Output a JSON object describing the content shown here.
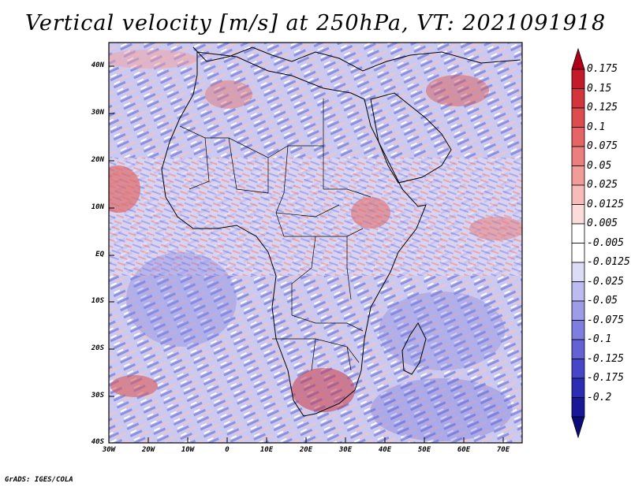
{
  "title": "Vertical velocity [m/s] at 250hPa, VT: 2021091918",
  "credit": "GrADS: IGES/COLA",
  "map": {
    "lat_labels": [
      "40N",
      "30N",
      "20N",
      "10N",
      "EQ",
      "10S",
      "20S",
      "30S",
      "40S"
    ],
    "lon_labels": [
      "30W",
      "20W",
      "10W",
      "0",
      "10E",
      "20E",
      "30E",
      "40E",
      "50E",
      "60E",
      "70E"
    ],
    "lat_range": [
      -40,
      45
    ],
    "lon_range": [
      -30,
      75
    ]
  },
  "colorbar": {
    "labels": [
      "0.175",
      "0.15",
      "0.125",
      "0.1",
      "0.075",
      "0.05",
      "0.025",
      "0.0125",
      "0.005",
      "-0.005",
      "-0.0125",
      "-0.025",
      "-0.05",
      "-0.075",
      "-0.1",
      "-0.125",
      "-0.175",
      "-0.2"
    ],
    "colors": [
      "#b00018",
      "#c41a2a",
      "#d4343c",
      "#de4c50",
      "#e66466",
      "#ec7e7e",
      "#f29c9a",
      "#f7bcba",
      "#fbdcdb",
      "#ffffff",
      "#dcdcf7",
      "#bcbcf0",
      "#9c9ce8",
      "#7e7ee0",
      "#6262d6",
      "#4646c8",
      "#2c2cb4",
      "#181898",
      "#0c0c78"
    ]
  }
}
